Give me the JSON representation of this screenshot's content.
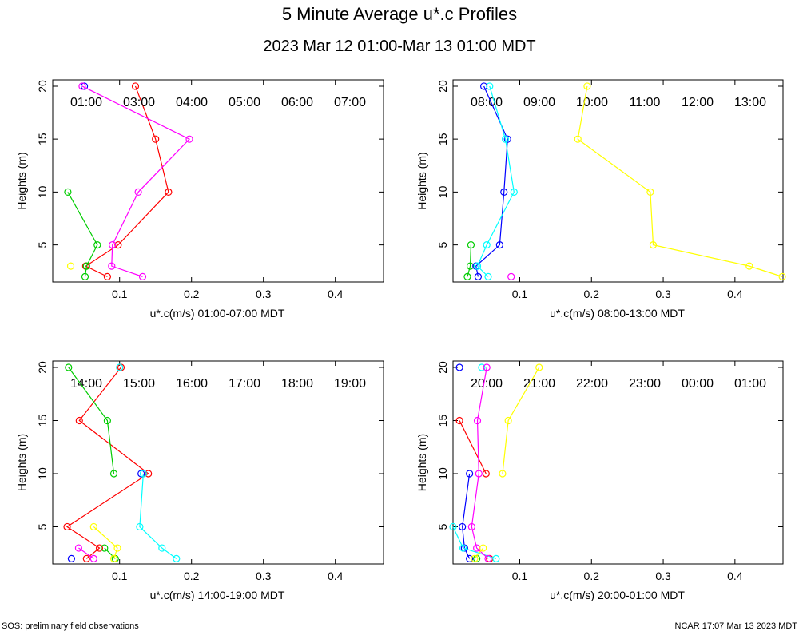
{
  "title": "5 Minute Average u*.c Profiles",
  "subtitle": "2023 Mar 12 01:00-Mar 13 01:00 MDT",
  "footer_left": "SOS: preliminary field observations",
  "footer_right": "NCAR 17:07 Mar 13 2023 MDT",
  "chart_data": [
    {
      "type": "line",
      "xlabel": "u*.c(m/s) 01:00-07:00 MDT",
      "ylabel": "Heights (m)",
      "heights": [
        20,
        15,
        10,
        5,
        3,
        2
      ],
      "xlim": [
        0.007,
        0.467
      ],
      "ylim": [
        1.5,
        20.6
      ],
      "xticks": [
        0.1,
        0.2,
        0.3,
        0.4
      ],
      "yticks": [
        5,
        10,
        15,
        20
      ],
      "series": [
        {
          "name": "01:00",
          "color": "#ff0000",
          "values": [
            0.122,
            0.15,
            0.168,
            0.098,
            0.053,
            0.083
          ]
        },
        {
          "name": "03:00",
          "color": "#00cc00",
          "values": [
            null,
            null,
            0.028,
            0.069,
            0.054,
            0.052
          ]
        },
        {
          "name": "04:00",
          "color": "#0000ff",
          "values": [
            0.051,
            null,
            null,
            null,
            null,
            null
          ]
        },
        {
          "name": "05:00",
          "color": "#00ffff",
          "values": [
            null,
            null,
            null,
            null,
            null,
            null
          ]
        },
        {
          "name": "06:00",
          "color": "#ff00ff",
          "values": [
            0.048,
            0.197,
            0.126,
            0.09,
            0.089,
            0.132
          ]
        },
        {
          "name": "07:00",
          "color": "#ffff00",
          "values": [
            null,
            null,
            null,
            null,
            0.032,
            null
          ]
        }
      ]
    },
    {
      "type": "line",
      "xlabel": "u*.c(m/s) 08:00-13:00 MDT",
      "ylabel": "Heights (m)",
      "heights": [
        20,
        15,
        10,
        5,
        3,
        2
      ],
      "xlim": [
        0.007,
        0.467
      ],
      "ylim": [
        1.5,
        20.6
      ],
      "xticks": [
        0.1,
        0.2,
        0.3,
        0.4
      ],
      "yticks": [
        5,
        10,
        15,
        20
      ],
      "series": [
        {
          "name": "08:00",
          "color": "#ff0000",
          "values": [
            null,
            null,
            null,
            null,
            null,
            null
          ]
        },
        {
          "name": "09:00",
          "color": "#00cc00",
          "values": [
            null,
            null,
            null,
            0.032,
            0.031,
            0.027
          ]
        },
        {
          "name": "10:00",
          "color": "#0000ff",
          "values": [
            0.05,
            0.083,
            0.078,
            0.072,
            0.039,
            0.042
          ]
        },
        {
          "name": "11:00",
          "color": "#00ffff",
          "values": [
            0.058,
            0.08,
            0.092,
            0.054,
            0.041,
            0.056
          ]
        },
        {
          "name": "12:00",
          "color": "#ff00ff",
          "values": [
            null,
            null,
            null,
            null,
            null,
            0.088
          ]
        },
        {
          "name": "13:00",
          "color": "#ffff00",
          "values": [
            0.194,
            0.181,
            0.282,
            0.286,
            0.42,
            0.466
          ]
        }
      ]
    },
    {
      "type": "line",
      "xlabel": "u*.c(m/s) 14:00-19:00 MDT",
      "ylabel": "Heights (m)",
      "heights": [
        20,
        15,
        10,
        5,
        3,
        2
      ],
      "xlim": [
        0.007,
        0.467
      ],
      "ylim": [
        1.5,
        20.6
      ],
      "xticks": [
        0.1,
        0.2,
        0.3,
        0.4
      ],
      "yticks": [
        5,
        10,
        15,
        20
      ],
      "series": [
        {
          "name": "14:00",
          "color": "#ff0000",
          "values": [
            0.102,
            0.044,
            0.14,
            0.027,
            0.072,
            0.054
          ]
        },
        {
          "name": "15:00",
          "color": "#00cc00",
          "values": [
            0.029,
            0.083,
            0.092,
            null,
            0.079,
            0.094
          ]
        },
        {
          "name": "16:00",
          "color": "#0000ff",
          "values": [
            null,
            null,
            0.13,
            null,
            null,
            0.033
          ]
        },
        {
          "name": "17:00",
          "color": "#00ffff",
          "values": [
            0.1,
            null,
            0.133,
            0.128,
            0.159,
            0.179
          ]
        },
        {
          "name": "18:00",
          "color": "#ff00ff",
          "values": [
            null,
            null,
            null,
            null,
            0.043,
            0.064
          ]
        },
        {
          "name": "19:00",
          "color": "#ffff00",
          "values": [
            null,
            null,
            null,
            0.064,
            0.097,
            0.092
          ]
        }
      ]
    },
    {
      "type": "line",
      "xlabel": "u*.c(m/s) 20:00-01:00 MDT",
      "ylabel": "Heights (m)",
      "heights": [
        20,
        15,
        10,
        5,
        3,
        2
      ],
      "xlim": [
        0.007,
        0.467
      ],
      "ylim": [
        1.5,
        20.6
      ],
      "xticks": [
        0.1,
        0.2,
        0.3,
        0.4
      ],
      "yticks": [
        5,
        10,
        15,
        20
      ],
      "series": [
        {
          "name": "20:00",
          "color": "#ff0000",
          "values": [
            null,
            0.016,
            0.053,
            null,
            null,
            0.058
          ]
        },
        {
          "name": "21:00",
          "color": "#00cc00",
          "values": [
            null,
            null,
            null,
            null,
            null,
            0.04
          ]
        },
        {
          "name": "22:00",
          "color": "#0000ff",
          "values": [
            0.016,
            null,
            0.03,
            0.02,
            0.023,
            0.03
          ]
        },
        {
          "name": "23:00",
          "color": "#00ffff",
          "values": [
            0.047,
            null,
            null,
            0.007,
            0.021,
            0.067
          ]
        },
        {
          "name": "00:00",
          "color": "#ff00ff",
          "values": [
            0.054,
            0.041,
            0.043,
            0.033,
            0.04,
            0.056
          ]
        },
        {
          "name": "01:00",
          "color": "#ffff00",
          "values": [
            0.127,
            0.084,
            0.076,
            null,
            0.049,
            0.037
          ]
        }
      ]
    }
  ]
}
